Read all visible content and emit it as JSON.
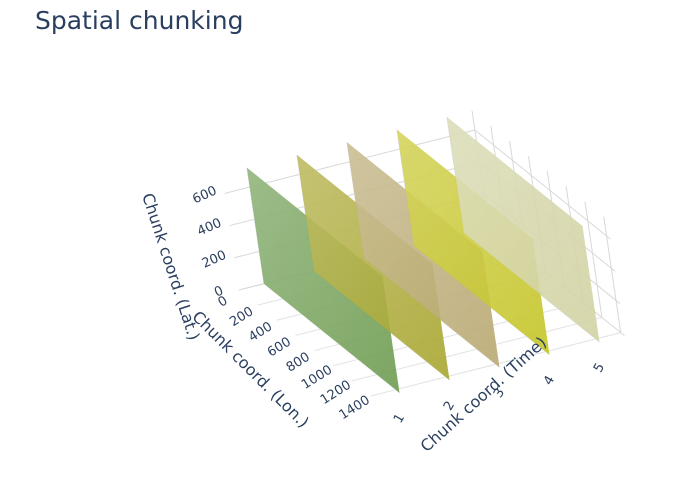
{
  "chart_data": {
    "type": "surface",
    "title": "Spatial chunking",
    "axes": {
      "x": {
        "label": "Chunk coord. (Lon.)",
        "ticks": [
          "0",
          "200",
          "400",
          "600",
          "800",
          "1000",
          "1200",
          "1400"
        ],
        "range": [
          0,
          1440
        ]
      },
      "y": {
        "label": "Chunk coord. (Time)",
        "ticks": [
          "1",
          "2",
          "3",
          "4",
          "5"
        ],
        "range": [
          0.5,
          5.5
        ]
      },
      "z": {
        "label": "Chunk coord. (Lat.)",
        "ticks": [
          "0",
          "200",
          "400",
          "600"
        ],
        "range": [
          0,
          720
        ]
      }
    },
    "series": [
      {
        "time": 1,
        "lon_range": [
          0,
          1440
        ],
        "lat_range": [
          0,
          720
        ],
        "color": "#6a9a4c"
      },
      {
        "time": 2,
        "lon_range": [
          0,
          1440
        ],
        "lat_range": [
          0,
          720
        ],
        "color": "#a6a42a"
      },
      {
        "time": 3,
        "lon_range": [
          0,
          1440
        ],
        "lat_range": [
          0,
          720
        ],
        "color": "#b7a66e"
      },
      {
        "time": 4,
        "lon_range": [
          0,
          1440
        ],
        "lat_range": [
          0,
          720
        ],
        "color": "#c4c422"
      },
      {
        "time": 5,
        "lon_range": [
          0,
          1440
        ],
        "lat_range": [
          0,
          720
        ],
        "color": "#d0d2a0"
      }
    ],
    "grid": true
  }
}
